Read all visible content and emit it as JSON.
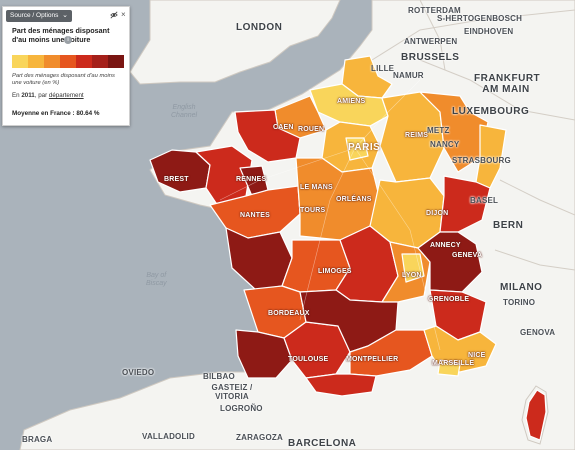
{
  "map": {
    "colors": {
      "sea": "#aab3bb",
      "land": "#f4f4f1",
      "border": "#cfc9c1",
      "dept_border": "#ffffff",
      "scale": [
        "#f9d55b",
        "#f7b53c",
        "#f08c2c",
        "#e6561f",
        "#cc2a1c",
        "#8e1a15"
      ]
    },
    "places": {
      "london": "LONDON",
      "rotterdam": "ROTTERDAM",
      "shertogenbosch": "S-HERTOGENBOSCH",
      "eindhoven": "EINDHOVEN",
      "antwerpen": "ANTWERPEN",
      "brussels": "BRUSSELS",
      "lille": "LILLE",
      "namur": "NAMUR",
      "frankfurt": "FRANKFURT AM MAIN",
      "luxembourg": "LUXEMBOURG",
      "metz": "METZ",
      "nancy": "NANCY",
      "strasbourg": "STRASBOURG",
      "bern": "BERN",
      "milano": "MILANO",
      "torino": "TORINO",
      "basel": "BASEL",
      "genova": "GENOVA",
      "bilbao": "BILBAO",
      "gasteiz": "GASTEIZ / VITORIA",
      "logrono": "LOGROÑO",
      "valladolid": "VALLADOLID",
      "zaragoza": "ZARAGOZA",
      "barcelona": "BARCELONA",
      "braga": "BRAGA",
      "oviedo": "OVIEDO"
    },
    "cities": {
      "amiens": "AMIENS",
      "rouen": "ROUEN",
      "caen": "CAEN",
      "reims": "REIMS",
      "paris": "PARIS",
      "brest": "BREST",
      "rennes": "RENNES",
      "le_mans": "LE MANS",
      "orleans": "ORLÉANS",
      "tours": "TOURS",
      "nantes": "NANTES",
      "dijon": "DIJON",
      "limoges": "LIMOGES",
      "lyon": "LYON",
      "grenoble": "GRENOBLE",
      "bordeaux": "BORDEAUX",
      "toulouse": "TOULOUSE",
      "montpellier": "MONTPELLIER",
      "marseille": "MARSEILLE",
      "nice": "NICE",
      "annecy": "ANNECY",
      "geneve": "GENEVA"
    },
    "seas": {
      "channel": "English\nChannel",
      "biscay": "Bay of\nBiscay"
    },
    "choropleth_levels": {
      "idf_center": 1,
      "north": 2,
      "northeast": 3,
      "west": 4,
      "center": 3,
      "southwest": 5,
      "massif": 6,
      "alps": 5,
      "provence": 2
    }
  },
  "panel": {
    "source_label": "Source / Options",
    "source_chevron": "⌄",
    "close_symbol": "×",
    "info_symbol": "i",
    "title": "Part des ménages disposant d'au moins une voiture",
    "legend_colors": [
      "#f9d55b",
      "#f7b53c",
      "#f08c2c",
      "#e6561f",
      "#cc2a1c",
      "#a5201a",
      "#7a1512"
    ],
    "subtitle": "Part des ménages disposant d'au moins une voiture (en %)",
    "year_prefix": "En",
    "year": "2011",
    "year_suffix": ", par",
    "year_unit": "département",
    "mean_label": "Moyenne en France :",
    "mean_value": "80.64 %"
  }
}
